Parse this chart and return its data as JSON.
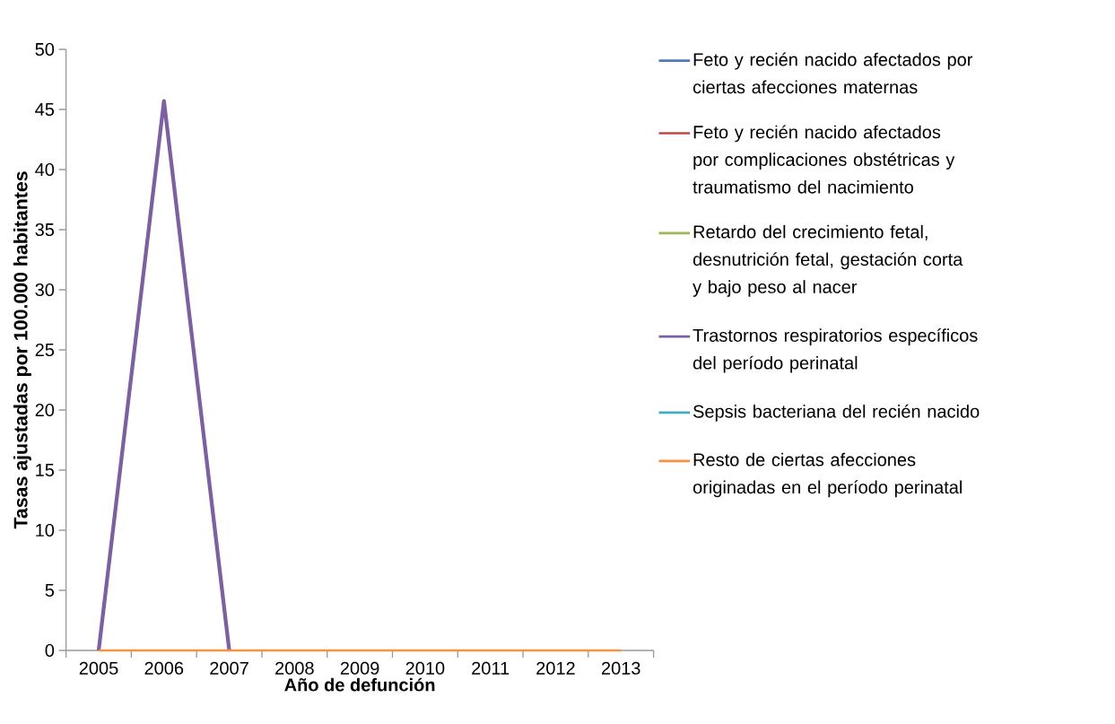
{
  "chart_data": {
    "type": "line",
    "xlabel": "Año de defunción",
    "ylabel": "Tasas ajustadas por 100.000 habitantes",
    "categories": [
      "2005",
      "2006",
      "2007",
      "2008",
      "2009",
      "2010",
      "2011",
      "2012",
      "2013"
    ],
    "ylim": [
      0,
      50
    ],
    "yticks": [
      0,
      5,
      10,
      15,
      20,
      25,
      30,
      35,
      40,
      45,
      50
    ],
    "grid": false,
    "legend": "right",
    "series": [
      {
        "name": "Feto y recién nacido afectados por ciertas afecciones maternas",
        "color": "#4a7ebb",
        "values": [
          null,
          null,
          null,
          null,
          null,
          null,
          null,
          null,
          null
        ]
      },
      {
        "name": "Feto y recién nacido afectados por complicaciones obstétricas y traumatismo del nacimiento",
        "color": "#be4b48",
        "values": [
          null,
          null,
          null,
          null,
          null,
          null,
          null,
          null,
          null
        ]
      },
      {
        "name": "Retardo del crecimiento fetal, desnutrición fetal, gestación corta y bajo peso al nacer",
        "color": "#98b954",
        "values": [
          null,
          null,
          null,
          null,
          null,
          null,
          null,
          null,
          null
        ]
      },
      {
        "name": "Trastornos respiratorios específicos del período perinatal",
        "color": "#7d60a0",
        "values": [
          0,
          45.7,
          0,
          null,
          null,
          null,
          null,
          null,
          null
        ]
      },
      {
        "name": "Sepsis bacteriana del recién nacido",
        "color": "#46aac5",
        "values": [
          null,
          null,
          null,
          null,
          null,
          null,
          null,
          null,
          null
        ]
      },
      {
        "name": "Resto de ciertas afecciones originadas en el período perinatal",
        "color": "#f69240",
        "values": [
          0,
          0,
          0,
          0,
          0,
          0,
          0,
          0,
          0
        ]
      }
    ]
  }
}
